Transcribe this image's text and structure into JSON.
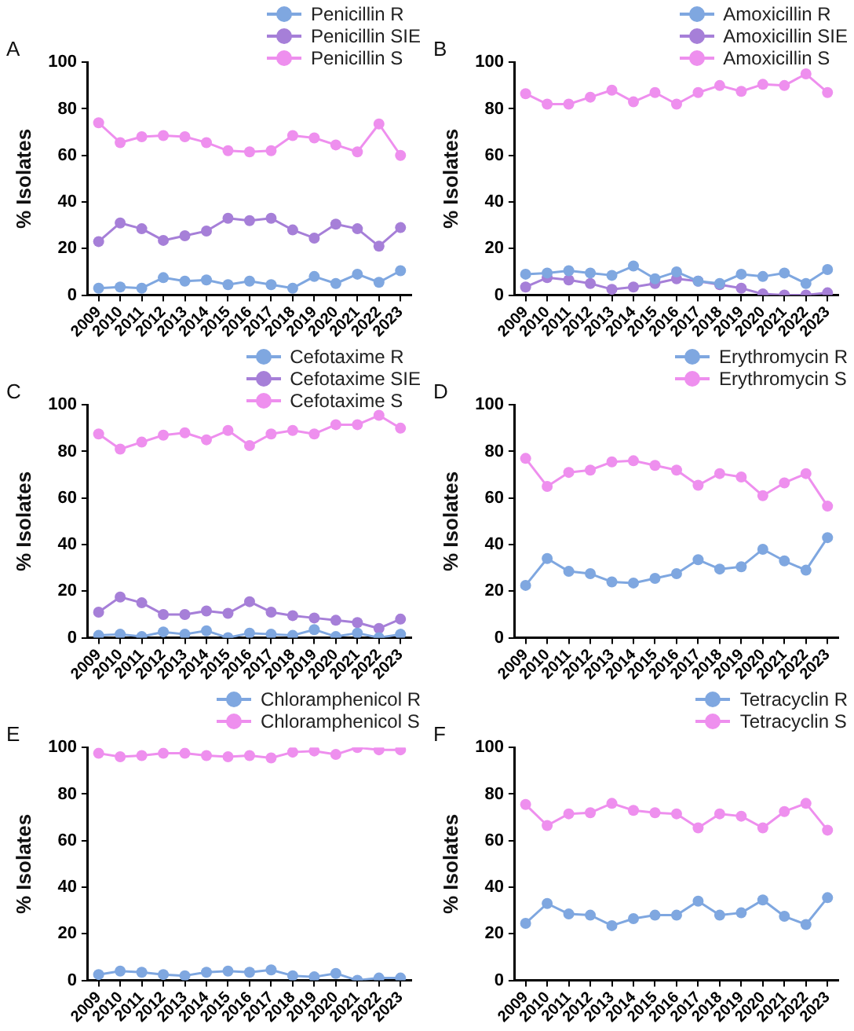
{
  "chart_data": [
    {
      "type": "line",
      "title": "A",
      "ylabel": "% Isolates",
      "categories": [
        "2009",
        "2010",
        "2011",
        "2012",
        "2013",
        "2014",
        "2015",
        "2016",
        "2017",
        "2018",
        "2019",
        "2020",
        "2021",
        "2022",
        "2023"
      ],
      "ylim": [
        0,
        100
      ],
      "yticks": [
        0,
        20,
        40,
        60,
        80,
        100
      ],
      "grid": false,
      "legend": "top right",
      "marker": "circle",
      "line_style": "solid",
      "series": [
        {
          "name": "Penicillin R",
          "color": "#7fa7e0",
          "values": [
            3,
            3.5,
            3,
            7.5,
            6,
            6.5,
            4.5,
            6,
            4.5,
            3,
            8,
            5,
            9,
            5.5,
            10.5
          ]
        },
        {
          "name": "Penicillin SIE",
          "color": "#a67fd8",
          "values": [
            23,
            31,
            28.5,
            23.5,
            25.5,
            27.5,
            33,
            32,
            33,
            28,
            24.5,
            30.5,
            28.5,
            21,
            29
          ]
        },
        {
          "name": "Penicillin S",
          "color": "#ee8fee",
          "values": [
            74,
            65.5,
            68,
            68.5,
            68,
            65.5,
            62,
            61.5,
            62,
            68.5,
            67.5,
            64.5,
            61.5,
            73.5,
            60
          ]
        }
      ]
    },
    {
      "type": "line",
      "title": "B",
      "ylabel": "% Isolates",
      "categories": [
        "2009",
        "2010",
        "2011",
        "2012",
        "2013",
        "2014",
        "2015",
        "2016",
        "2017",
        "2018",
        "2019",
        "2020",
        "2021",
        "2022",
        "2023"
      ],
      "ylim": [
        0,
        100
      ],
      "yticks": [
        0,
        20,
        40,
        60,
        80,
        100
      ],
      "grid": false,
      "legend": "top right",
      "marker": "circle",
      "line_style": "solid",
      "series": [
        {
          "name": "Amoxicillin R",
          "color": "#7fa7e0",
          "values": [
            9,
            9.5,
            10.5,
            9.5,
            8.5,
            12.5,
            7,
            10,
            6,
            5,
            9,
            8,
            9.5,
            5,
            11
          ]
        },
        {
          "name": "Amoxicillin SIE",
          "color": "#a67fd8",
          "values": [
            3.5,
            7.5,
            6.5,
            5,
            2.5,
            3.5,
            5,
            7,
            6,
            4.5,
            3,
            0.5,
            0,
            0,
            1
          ]
        },
        {
          "name": "Amoxicillin S",
          "color": "#ee8fee",
          "values": [
            86.5,
            82,
            82,
            85,
            88,
            83,
            87,
            82,
            87,
            90,
            87.5,
            90.5,
            90,
            95,
            87
          ]
        }
      ]
    },
    {
      "type": "line",
      "title": "C",
      "ylabel": "% Isolates",
      "categories": [
        "2009",
        "2010",
        "2011",
        "2012",
        "2013",
        "2014",
        "2015",
        "2016",
        "2017",
        "2018",
        "2019",
        "2020",
        "2021",
        "2022",
        "2023"
      ],
      "ylim": [
        0,
        100
      ],
      "yticks": [
        0,
        20,
        40,
        60,
        80,
        100
      ],
      "grid": false,
      "legend": "top right",
      "marker": "circle",
      "line_style": "solid",
      "series": [
        {
          "name": "Cefotaxime R",
          "color": "#7fa7e0",
          "values": [
            1,
            1.5,
            0.5,
            2.5,
            1.5,
            3,
            0,
            2,
            1.5,
            1,
            3.5,
            0.5,
            2,
            0,
            1.5
          ]
        },
        {
          "name": "Cefotaxime SIE",
          "color": "#a67fd8",
          "values": [
            11,
            17.5,
            15,
            10,
            10,
            11.5,
            10.5,
            15.5,
            11,
            9.5,
            8.5,
            7.5,
            6.5,
            4,
            8
          ]
        },
        {
          "name": "Cefotaxime S",
          "color": "#ee8fee",
          "values": [
            87.5,
            81,
            84,
            87,
            88,
            85,
            89,
            82.5,
            87.5,
            89,
            87.5,
            91.5,
            91.5,
            95.5,
            90
          ]
        }
      ]
    },
    {
      "type": "line",
      "title": "D",
      "ylabel": "% Isolates",
      "categories": [
        "2009",
        "2010",
        "2011",
        "2012",
        "2013",
        "2014",
        "2015",
        "2016",
        "2017",
        "2018",
        "2019",
        "2020",
        "2021",
        "2022",
        "2023"
      ],
      "ylim": [
        0,
        100
      ],
      "yticks": [
        0,
        20,
        40,
        60,
        80,
        100
      ],
      "grid": false,
      "legend": "top right",
      "marker": "circle",
      "line_style": "solid",
      "series": [
        {
          "name": "Erythromycin R",
          "color": "#7fa7e0",
          "values": [
            22.5,
            34,
            28.5,
            27.5,
            24,
            23.5,
            25.5,
            27.5,
            33.5,
            29.5,
            30.5,
            38,
            33,
            29,
            43
          ]
        },
        {
          "name": "Erythromycin S",
          "color": "#ee8fee",
          "values": [
            77,
            65,
            71,
            72,
            75.5,
            76,
            74,
            72,
            65.5,
            70.5,
            69,
            61,
            66.5,
            70.5,
            56.5
          ]
        }
      ]
    },
    {
      "type": "line",
      "title": "E",
      "ylabel": "% Isolates",
      "categories": [
        "2009",
        "2010",
        "2011",
        "2012",
        "2013",
        "2014",
        "2015",
        "2016",
        "2017",
        "2018",
        "2019",
        "2020",
        "2021",
        "2022",
        "2023"
      ],
      "ylim": [
        0,
        100
      ],
      "yticks": [
        0,
        20,
        40,
        60,
        80,
        100
      ],
      "grid": false,
      "legend": "top right",
      "marker": "circle",
      "line_style": "solid",
      "series": [
        {
          "name": "Chloramphenicol R",
          "color": "#7fa7e0",
          "values": [
            2.5,
            4,
            3.5,
            2.5,
            2,
            3.5,
            4,
            3.5,
            4.5,
            2,
            1.5,
            3,
            0,
            1,
            1
          ]
        },
        {
          "name": "Chloramphenicol S",
          "color": "#ee8fee",
          "values": [
            97.5,
            96,
            96.5,
            97.5,
            97.5,
            96.5,
            96,
            96.5,
            95.5,
            98,
            98.5,
            97,
            100,
            99,
            99
          ]
        }
      ]
    },
    {
      "type": "line",
      "title": "F",
      "ylabel": "% Isolates",
      "categories": [
        "2009",
        "2010",
        "2011",
        "2012",
        "2013",
        "2014",
        "2015",
        "2016",
        "2017",
        "2018",
        "2019",
        "2020",
        "2021",
        "2022",
        "2023"
      ],
      "ylim": [
        0,
        100
      ],
      "yticks": [
        0,
        20,
        40,
        60,
        80,
        100
      ],
      "grid": false,
      "legend": "top right",
      "marker": "circle",
      "line_style": "solid",
      "series": [
        {
          "name": "Tetracyclin R",
          "color": "#7fa7e0",
          "values": [
            24.5,
            33,
            28.5,
            28,
            23.5,
            26.5,
            28,
            28,
            34,
            28,
            29,
            34.5,
            27.5,
            24,
            35.5
          ]
        },
        {
          "name": "Tetracyclin S",
          "color": "#ee8fee",
          "values": [
            75.5,
            66.5,
            71.5,
            72,
            76,
            73,
            72,
            71.5,
            65.5,
            71.5,
            70.5,
            65.5,
            72.5,
            76,
            64.5
          ]
        }
      ]
    }
  ]
}
